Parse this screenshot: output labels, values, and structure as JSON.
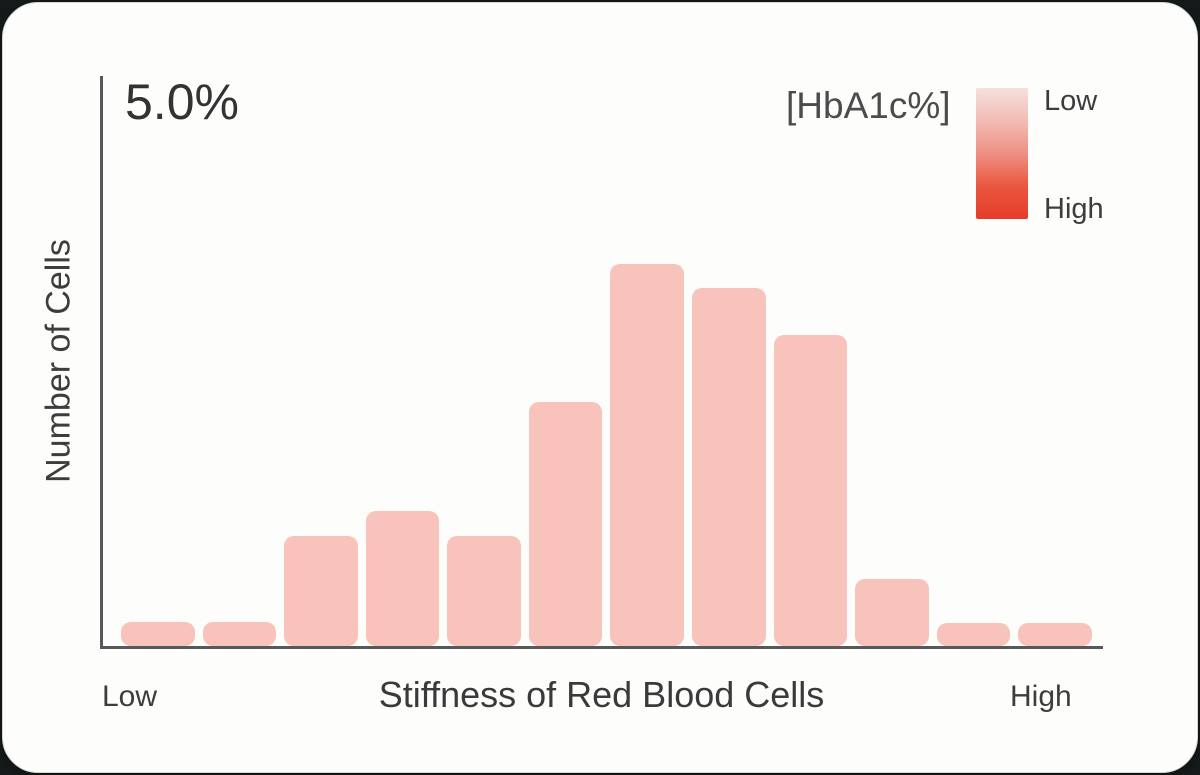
{
  "chart_data": {
    "type": "bar",
    "title": "5.0%",
    "ylabel": "Number of Cells",
    "xlabel": "Stiffness of Red Blood Cells",
    "x_end_labels": {
      "left": "Low",
      "right": "High"
    },
    "values": [
      6.3,
      6.3,
      28.8,
      35.3,
      28.8,
      63.9,
      100,
      93.7,
      81.4,
      17.5,
      6,
      6
    ],
    "ylim": [
      0,
      100
    ],
    "grid": false,
    "bar_color": "#f8c3ba",
    "axis_color": "#56585c",
    "legend": {
      "title": "[HbA1c%]",
      "low_label": "Low",
      "high_label": "High",
      "position": "top-right",
      "gradient_stops": [
        "#f6e0dd",
        "#f2bcb4",
        "#ee9084",
        "#e9573f",
        "#e63c2a"
      ]
    }
  }
}
